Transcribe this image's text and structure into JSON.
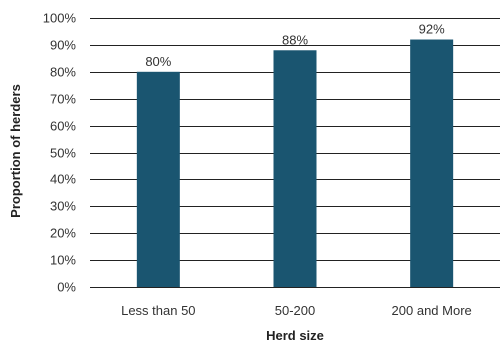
{
  "chart_data": {
    "type": "bar",
    "title": "",
    "xlabel": "Herd size",
    "ylabel": "Proportion of herders",
    "categories": [
      "Less than 50",
      "50-200",
      "200 and More"
    ],
    "values": [
      80,
      88,
      92
    ],
    "data_labels": [
      "80%",
      "88%",
      "92%"
    ],
    "ylim": [
      0,
      100
    ],
    "yticks": [
      0,
      10,
      20,
      30,
      40,
      50,
      60,
      70,
      80,
      90,
      100
    ],
    "ytick_labels": [
      "0%",
      "10%",
      "20%",
      "30%",
      "40%",
      "50%",
      "60%",
      "70%",
      "80%",
      "90%",
      "100%"
    ],
    "grid": true,
    "legend": "none",
    "bar_color": "#1a5570"
  }
}
